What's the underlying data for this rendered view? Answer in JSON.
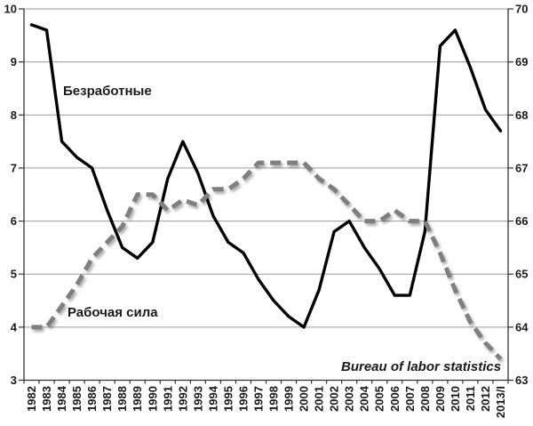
{
  "chart_data": {
    "type": "line",
    "x_categories": [
      "1982",
      "1983",
      "1984",
      "1985",
      "1986",
      "1987",
      "1988",
      "1989",
      "1990",
      "1991",
      "1992",
      "1993",
      "1994",
      "1995",
      "1996",
      "1997",
      "1998",
      "1999",
      "2000",
      "2001",
      "2002",
      "2003",
      "2004",
      "2005",
      "2006",
      "2007",
      "2008",
      "2009",
      "2010",
      "2011",
      "2012",
      "2013/I"
    ],
    "series": [
      {
        "name": "Безработные",
        "axis": "left",
        "line_style": "solid",
        "color": "#000000",
        "values": [
          9.7,
          9.6,
          7.5,
          7.2,
          7.0,
          6.2,
          5.5,
          5.3,
          5.6,
          6.8,
          7.5,
          6.9,
          6.1,
          5.6,
          5.4,
          4.9,
          4.5,
          4.2,
          4.0,
          4.7,
          5.8,
          6.0,
          5.5,
          5.1,
          4.6,
          4.6,
          5.8,
          9.3,
          9.6,
          8.9,
          8.1,
          7.7
        ]
      },
      {
        "name": "Рабочая сила",
        "axis": "right",
        "line_style": "dashed",
        "color": "#7f7f7f",
        "values": [
          64.0,
          64.0,
          64.4,
          64.8,
          65.3,
          65.6,
          65.9,
          66.5,
          66.5,
          66.2,
          66.4,
          66.3,
          66.6,
          66.6,
          66.8,
          67.1,
          67.1,
          67.1,
          67.1,
          66.8,
          66.6,
          66.3,
          66.0,
          66.0,
          66.2,
          66.0,
          66.0,
          65.4,
          64.7,
          64.1,
          63.7,
          63.4
        ]
      }
    ],
    "left_axis": {
      "min": 3,
      "max": 10,
      "tick_labels": [
        "3",
        "4",
        "5",
        "6",
        "7",
        "8",
        "9",
        "10"
      ]
    },
    "right_axis": {
      "min": 63,
      "max": 70,
      "tick_labels": [
        "63",
        "64",
        "65",
        "66",
        "67",
        "68",
        "69",
        "70"
      ]
    },
    "grid": true,
    "legend_position": "none",
    "annotations": {
      "unemployed_label": "Безработные",
      "labor_force_label": "Рабочая сила",
      "source": "Bureau of labor statistics"
    }
  },
  "colors": {
    "background": "#ffffff",
    "gridline": "#9a9a9a",
    "axis": "#333333",
    "text": "#1a1a1a",
    "series_unemployed": "#000000",
    "series_labor_force": "#7f7f7f",
    "dash_shadow": "rgba(0,0,0,0.33)"
  }
}
